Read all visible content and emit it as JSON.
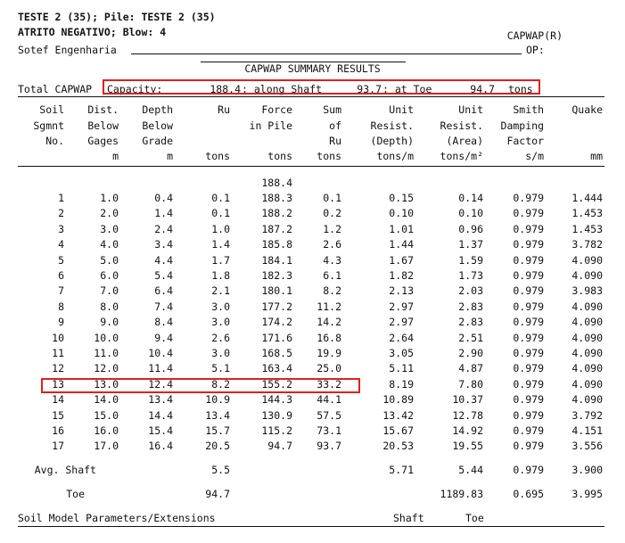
{
  "header": {
    "line1": "TESTE 2 (35); Pile: TESTE 2 (35)",
    "line2": "ATRITO NEGATIVO; Blow: 4",
    "line3": "Sotef Engenharia",
    "software": "CAPWAP(R)",
    "op_label": "OP:"
  },
  "title": "CAPWAP SUMMARY RESULTS",
  "capacity": {
    "prefix": "Total CAPWAP",
    "label": "Capacity:",
    "total": "188.4",
    "shaft_label": "; along Shaft",
    "shaft": "93.7",
    "toe_label": "; at Toe",
    "toe": "94.7",
    "unit": "tons"
  },
  "columns": [
    {
      "l1": "Soil",
      "l2": "Sgmnt",
      "l3": "No.",
      "unit": ""
    },
    {
      "l1": "Dist.",
      "l2": "Below",
      "l3": "Gages",
      "unit": "m"
    },
    {
      "l1": "Depth",
      "l2": "Below",
      "l3": "Grade",
      "unit": "m"
    },
    {
      "l1": "Ru",
      "l2": "",
      "l3": "",
      "unit": "tons"
    },
    {
      "l1": "Force",
      "l2": "in Pile",
      "l3": "",
      "unit": "tons"
    },
    {
      "l1": "Sum",
      "l2": "of",
      "l3": "Ru",
      "unit": "tons"
    },
    {
      "l1": "Unit",
      "l2": "Resist.",
      "l3": "(Depth)",
      "unit": "tons/m"
    },
    {
      "l1": "Unit",
      "l2": "Resist.",
      "l3": "(Area)",
      "unit": "tons/m²"
    },
    {
      "l1": "Smith",
      "l2": "Damping",
      "l3": "Factor",
      "unit": "s/m"
    },
    {
      "l1": "Quake",
      "l2": "",
      "l3": "",
      "unit": "mm"
    }
  ],
  "initial_force": "188.4",
  "rows": [
    [
      "1",
      "1.0",
      "0.4",
      "0.1",
      "188.3",
      "0.1",
      "0.15",
      "0.14",
      "0.979",
      "1.444"
    ],
    [
      "2",
      "2.0",
      "1.4",
      "0.1",
      "188.2",
      "0.2",
      "0.10",
      "0.10",
      "0.979",
      "1.453"
    ],
    [
      "3",
      "3.0",
      "2.4",
      "1.0",
      "187.2",
      "1.2",
      "1.01",
      "0.96",
      "0.979",
      "1.453"
    ],
    [
      "4",
      "4.0",
      "3.4",
      "1.4",
      "185.8",
      "2.6",
      "1.44",
      "1.37",
      "0.979",
      "3.782"
    ],
    [
      "5",
      "5.0",
      "4.4",
      "1.7",
      "184.1",
      "4.3",
      "1.67",
      "1.59",
      "0.979",
      "4.090"
    ],
    [
      "6",
      "6.0",
      "5.4",
      "1.8",
      "182.3",
      "6.1",
      "1.82",
      "1.73",
      "0.979",
      "4.090"
    ],
    [
      "7",
      "7.0",
      "6.4",
      "2.1",
      "180.1",
      "8.2",
      "2.13",
      "2.03",
      "0.979",
      "3.983"
    ],
    [
      "8",
      "8.0",
      "7.4",
      "3.0",
      "177.2",
      "11.2",
      "2.97",
      "2.83",
      "0.979",
      "4.090"
    ],
    [
      "9",
      "9.0",
      "8.4",
      "3.0",
      "174.2",
      "14.2",
      "2.97",
      "2.83",
      "0.979",
      "4.090"
    ],
    [
      "10",
      "10.0",
      "9.4",
      "2.6",
      "171.6",
      "16.8",
      "2.64",
      "2.51",
      "0.979",
      "4.090"
    ],
    [
      "11",
      "11.0",
      "10.4",
      "3.0",
      "168.5",
      "19.9",
      "3.05",
      "2.90",
      "0.979",
      "4.090"
    ],
    [
      "12",
      "12.0",
      "11.4",
      "5.1",
      "163.4",
      "25.0",
      "5.11",
      "4.87",
      "0.979",
      "4.090"
    ],
    [
      "13",
      "13.0",
      "12.4",
      "8.2",
      "155.2",
      "33.2",
      "8.19",
      "7.80",
      "0.979",
      "4.090"
    ],
    [
      "14",
      "14.0",
      "13.4",
      "10.9",
      "144.3",
      "44.1",
      "10.89",
      "10.37",
      "0.979",
      "4.090"
    ],
    [
      "15",
      "15.0",
      "14.4",
      "13.4",
      "130.9",
      "57.5",
      "13.42",
      "12.78",
      "0.979",
      "3.792"
    ],
    [
      "16",
      "16.0",
      "15.4",
      "15.7",
      "115.2",
      "73.1",
      "15.67",
      "14.92",
      "0.979",
      "4.151"
    ],
    [
      "17",
      "17.0",
      "16.4",
      "20.5",
      "94.7",
      "93.7",
      "20.53",
      "19.55",
      "0.979",
      "3.556"
    ]
  ],
  "avg_shaft": {
    "label": "Avg. Shaft",
    "ru": "5.5",
    "unit_depth": "5.71",
    "unit_area": "5.44",
    "damping": "0.979",
    "quake": "3.900"
  },
  "toe": {
    "label": "Toe",
    "ru": "94.7",
    "unit_area": "1189.83",
    "damping": "0.695",
    "quake": "3.995"
  },
  "footer": {
    "label": "Soil Model Parameters/Extensions",
    "shaft": "Shaft",
    "toe": "Toe"
  }
}
